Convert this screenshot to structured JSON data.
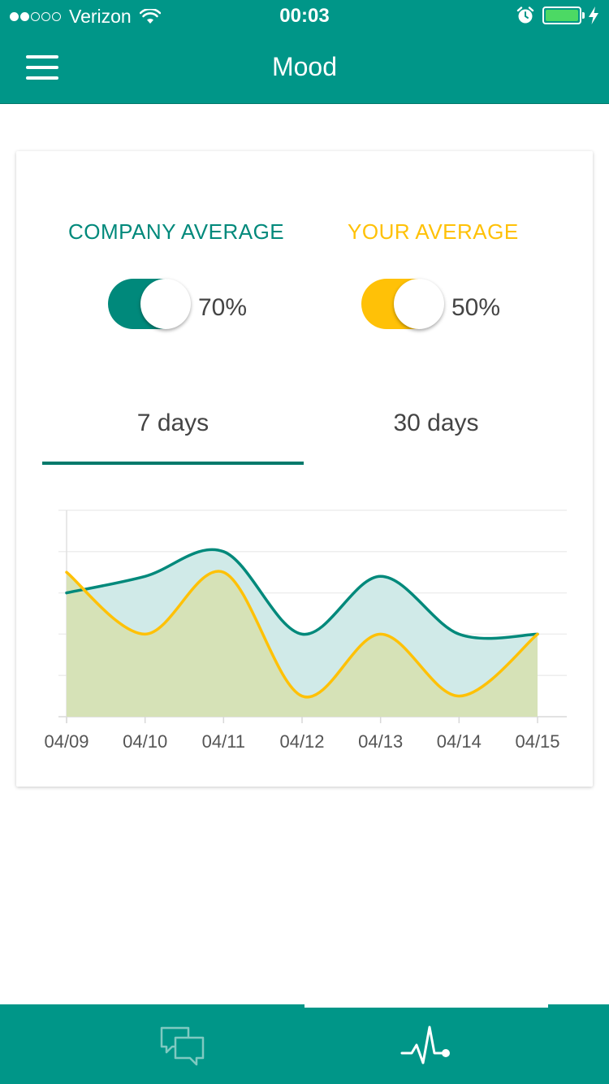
{
  "status_bar": {
    "carrier": "Verizon",
    "time": "00:03",
    "signal_bars_filled": 2,
    "signal_bars_total": 5,
    "battery_level": 1.0,
    "icons": [
      "wifi-icon",
      "alarm-icon",
      "battery-icon",
      "charging-bolt-icon"
    ]
  },
  "header": {
    "title": "Mood",
    "menu_icon": "hamburger-menu-icon"
  },
  "averages": {
    "company": {
      "label": "COMPANY AVERAGE",
      "value": "70%",
      "enabled": true
    },
    "yours": {
      "label": "YOUR AVERAGE",
      "value": "50%",
      "enabled": true
    }
  },
  "tabs": [
    {
      "label": "7 days",
      "selected": true
    },
    {
      "label": "30 days",
      "selected": false
    }
  ],
  "colors": {
    "primary": "#009688",
    "company": "#00897b",
    "yours": "#ffc107",
    "company_fill": "#cde9e7",
    "yours_fill": "#d6e2b4"
  },
  "chart_data": {
    "type": "area",
    "categories": [
      "04/09",
      "04/10",
      "04/11",
      "04/12",
      "04/13",
      "04/14",
      "04/15"
    ],
    "series": [
      {
        "values": [
          3.0,
          3.4,
          4.0,
          2.0,
          3.4,
          2.0,
          2.0
        ],
        "color": "#00897b"
      },
      {
        "values": [
          3.5,
          2.0,
          3.5,
          0.5,
          2.0,
          0.5,
          2.0
        ],
        "color": "#ffc107"
      }
    ],
    "ylim": [
      0,
      5
    ],
    "grid": true,
    "y_tick_labels_shown": false
  },
  "bottom_nav": {
    "items": [
      {
        "icon": "chat-bubbles-icon",
        "active": false
      },
      {
        "icon": "heartbeat-pulse-icon",
        "active": true
      }
    ]
  }
}
